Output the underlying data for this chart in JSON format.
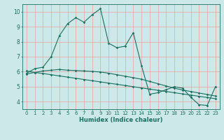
{
  "xlabel": "Humidex (Indice chaleur)",
  "x_values": [
    0,
    1,
    2,
    3,
    4,
    5,
    6,
    7,
    8,
    9,
    10,
    11,
    12,
    13,
    14,
    15,
    16,
    17,
    18,
    19,
    20,
    21,
    22,
    23
  ],
  "line1": [
    5.9,
    6.2,
    6.3,
    7.0,
    8.4,
    9.2,
    9.6,
    9.3,
    9.8,
    10.2,
    7.9,
    7.6,
    7.7,
    8.6,
    6.4,
    4.5,
    4.6,
    4.8,
    5.0,
    4.9,
    4.3,
    3.8,
    3.75,
    5.0
  ],
  "line2": [
    6.05,
    5.95,
    5.88,
    5.8,
    5.72,
    5.64,
    5.56,
    5.48,
    5.4,
    5.32,
    5.24,
    5.16,
    5.08,
    5.0,
    4.92,
    4.84,
    4.76,
    4.68,
    4.6,
    4.52,
    4.44,
    4.36,
    4.28,
    4.2
  ],
  "line3": [
    5.85,
    5.95,
    6.05,
    6.1,
    6.15,
    6.1,
    6.08,
    6.05,
    6.02,
    5.98,
    5.9,
    5.8,
    5.7,
    5.6,
    5.5,
    5.35,
    5.2,
    5.05,
    4.9,
    4.78,
    4.68,
    4.58,
    4.48,
    4.38
  ],
  "bg_color": "#cce8e8",
  "line_color": "#1a7060",
  "grid_color": "#e8a0a0",
  "ylim": [
    3.5,
    10.5
  ],
  "xlim": [
    -0.5,
    23.5
  ],
  "yticks": [
    4,
    5,
    6,
    7,
    8,
    9,
    10
  ],
  "xticks": [
    0,
    1,
    2,
    3,
    4,
    5,
    6,
    7,
    8,
    9,
    10,
    11,
    12,
    13,
    14,
    15,
    16,
    17,
    18,
    19,
    20,
    21,
    22,
    23
  ],
  "tick_fontsize": 5.0,
  "xlabel_fontsize": 6.0
}
